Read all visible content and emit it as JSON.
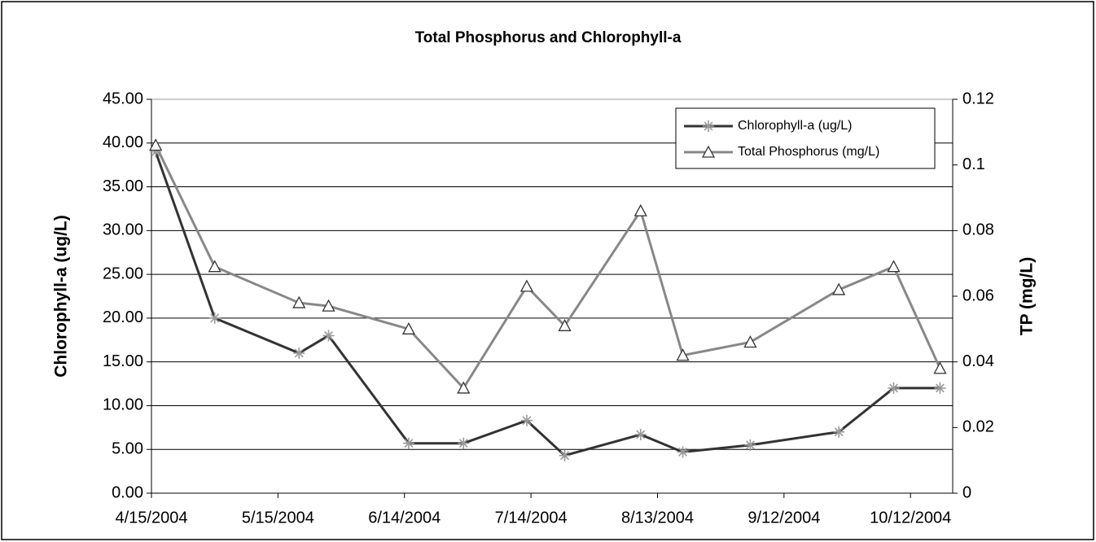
{
  "chart_data": {
    "type": "line",
    "title": "Total Phosphorus and Chlorophyll-a",
    "ylabel": "Chlorophyll-a (ug/L)",
    "y2label": "TP (mg/L)",
    "x": [
      "4/16/2004",
      "4/30/2004",
      "5/20/2004",
      "5/27/2004",
      "6/15/2004",
      "6/28/2004",
      "7/13/2004",
      "7/22/2004",
      "8/9/2004",
      "8/19/2004",
      "9/4/2004",
      "9/25/2004",
      "10/8/2004",
      "10/19/2004"
    ],
    "xlim": [
      "4/15/2004",
      "10/22/2004"
    ],
    "xticks": [
      "4/15/2004",
      "5/15/2004",
      "6/14/2004",
      "7/14/2004",
      "8/13/2004",
      "9/12/2004",
      "10/12/2004"
    ],
    "ylim": [
      0,
      45
    ],
    "yticks": [
      {
        "value": 0,
        "label": "0.00"
      },
      {
        "value": 5,
        "label": "5.00"
      },
      {
        "value": 10,
        "label": "10.00"
      },
      {
        "value": 15,
        "label": "15.00"
      },
      {
        "value": 20,
        "label": "20.00"
      },
      {
        "value": 25,
        "label": "25.00"
      },
      {
        "value": 30,
        "label": "30.00"
      },
      {
        "value": 35,
        "label": "35.00"
      },
      {
        "value": 40,
        "label": "40.00"
      },
      {
        "value": 45,
        "label": "45.00"
      }
    ],
    "y2lim": [
      0,
      0.12
    ],
    "y2ticks": [
      0,
      0.02,
      0.04,
      0.06,
      0.08,
      0.1,
      0.12
    ],
    "grid": true,
    "legend": "upper right",
    "series": [
      {
        "name": "Chlorophyll-a (ug/L)",
        "color": "#333333",
        "marker": "star",
        "marker_color": "#999999",
        "values": [
          39.0,
          20.0,
          16.0,
          18.0,
          5.7,
          5.7,
          8.3,
          4.3,
          6.7,
          4.7,
          5.5,
          7.0,
          12.0,
          12.0
        ]
      },
      {
        "name": "Total Phosphorus (mg/L)",
        "color": "#888888",
        "marker": "triangle",
        "marker_color": "#333333",
        "axis": "y2",
        "values": [
          0.106,
          0.069,
          0.058,
          0.057,
          0.05,
          0.032,
          0.063,
          0.051,
          0.086,
          0.042,
          0.046,
          0.062,
          0.069,
          0.038
        ]
      }
    ]
  }
}
